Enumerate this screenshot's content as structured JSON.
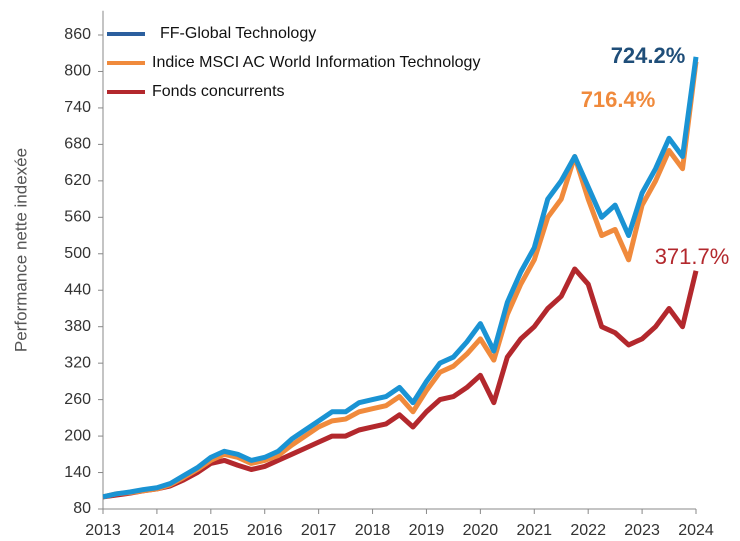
{
  "chart_data": {
    "type": "line",
    "y_label": "Performance nette indexée",
    "xlim": [
      2013,
      2024
    ],
    "xticks": [
      2013,
      2014,
      2015,
      2016,
      2017,
      2018,
      2019,
      2020,
      2021,
      2022,
      2023,
      2024
    ],
    "ylim": [
      80,
      900
    ],
    "yticks": [
      80,
      140,
      200,
      260,
      320,
      380,
      440,
      500,
      560,
      620,
      680,
      740,
      800,
      860
    ],
    "x": [
      2013,
      2013.25,
      2013.5,
      2013.75,
      2014,
      2014.25,
      2014.5,
      2014.75,
      2015,
      2015.25,
      2015.5,
      2015.75,
      2016,
      2016.25,
      2016.5,
      2016.75,
      2017,
      2017.25,
      2017.5,
      2017.75,
      2018,
      2018.25,
      2018.5,
      2018.75,
      2019,
      2019.25,
      2019.5,
      2019.75,
      2020,
      2020.25,
      2020.5,
      2020.75,
      2021,
      2021.25,
      2021.5,
      2021.75,
      2022,
      2022.25,
      2022.5,
      2022.75,
      2023,
      2023.25,
      2023.5,
      2023.75,
      2024
    ],
    "series": [
      {
        "name": "FF-Global Technology",
        "color": "#1a93d3",
        "legend_color": "#2b5f9e",
        "values": [
          100,
          105,
          108,
          112,
          115,
          122,
          135,
          148,
          165,
          175,
          170,
          160,
          165,
          175,
          195,
          210,
          225,
          240,
          240,
          255,
          260,
          265,
          280,
          255,
          290,
          320,
          330,
          355,
          385,
          340,
          420,
          470,
          510,
          590,
          620,
          660,
          610,
          560,
          580,
          530,
          600,
          640,
          690,
          660,
          824
        ]
      },
      {
        "name": "Indice MSCI AC World Information Technology",
        "color": "#f08a3c",
        "legend_color": "#f08a3c",
        "values": [
          100,
          105,
          107,
          110,
          113,
          120,
          132,
          145,
          160,
          170,
          165,
          155,
          160,
          168,
          185,
          200,
          215,
          225,
          228,
          240,
          245,
          250,
          265,
          240,
          275,
          305,
          315,
          335,
          360,
          325,
          400,
          450,
          490,
          560,
          590,
          660,
          590,
          530,
          540,
          490,
          580,
          620,
          670,
          640,
          816
        ]
      },
      {
        "name": "Fonds concurrents",
        "color": "#b3282d",
        "legend_color": "#b3282d",
        "values": [
          100,
          103,
          106,
          110,
          113,
          118,
          128,
          140,
          155,
          160,
          152,
          145,
          150,
          160,
          170,
          180,
          190,
          200,
          200,
          210,
          215,
          220,
          235,
          215,
          240,
          260,
          265,
          280,
          300,
          255,
          330,
          360,
          380,
          410,
          430,
          475,
          450,
          380,
          370,
          350,
          360,
          380,
          410,
          380,
          472
        ]
      }
    ],
    "annotations": [
      "724.2%",
      "716.4%",
      "371.7%"
    ]
  }
}
